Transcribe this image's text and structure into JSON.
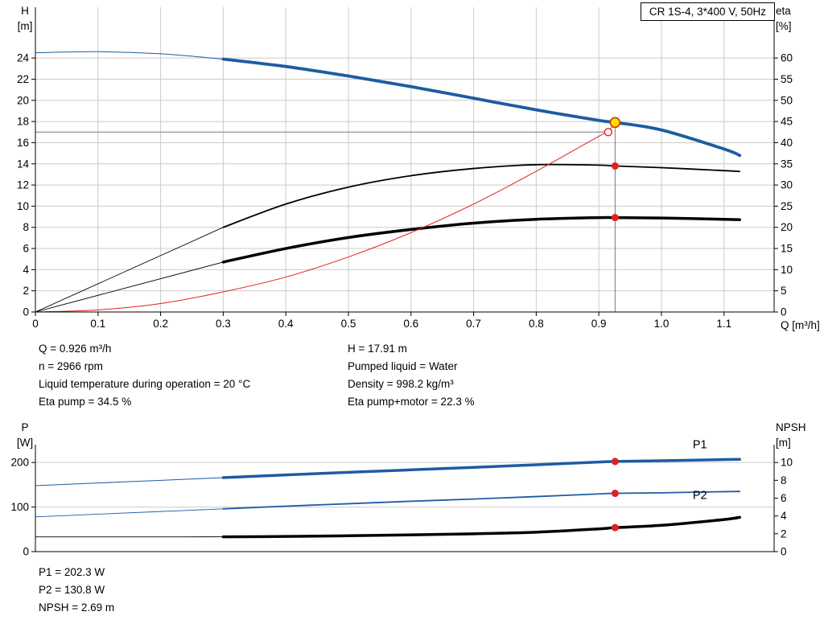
{
  "title_box": "CR 1S-4, 3*400 V, 50Hz",
  "labels": {
    "top_left_axis": "H\n[m]",
    "top_right_axis": "eta\n[%]",
    "top_x_axis": "Q [m³/h]",
    "bottom_left_axis": "P\n[W]",
    "bottom_right_axis": "NPSH\n[m]"
  },
  "info": {
    "left": [
      "Q = 0.926 m³/h",
      "n = 2966 rpm",
      "Liquid temperature during operation = 20 °C",
      "Eta pump = 34.5 %"
    ],
    "right": [
      "H = 17.91 m",
      "Pumped liquid = Water",
      "Density = 998.2 kg/m³",
      "Eta pump+motor = 22.3 %"
    ]
  },
  "footer": [
    "P1 = 202.3 W",
    "P2 = 130.8 W",
    "NPSH = 2.69 m"
  ],
  "duty_point": {
    "Q_m3h": 0.926,
    "H_m": 17.91,
    "n_rpm": 2966,
    "eta_pump_pct": 34.5,
    "eta_pump_motor_pct": 22.3,
    "P1_W": 202.3,
    "P2_W": 130.8,
    "NPSH_m": 2.69
  },
  "chart_data": [
    {
      "type": "line",
      "title": "CR 1S-4, 3*400 V, 50Hz",
      "xlabel": "Q [m³/h]",
      "ylabel": "H [m]",
      "y2label": "eta [%]",
      "xlim": [
        0,
        1.18
      ],
      "ylim": [
        0,
        28.8
      ],
      "y2lim": [
        0,
        72
      ],
      "xticks": [
        0,
        0.1,
        0.2,
        0.3,
        0.4,
        0.5,
        0.6,
        0.7,
        0.8,
        0.9,
        1.0,
        1.1
      ],
      "xtick_labels": [
        "0",
        "0.1",
        "0.2",
        "0.3",
        "0.4",
        "0.5",
        "0.6",
        "0.7",
        "0.8",
        "0.9",
        "1.0",
        "1.1"
      ],
      "yticks": [
        0,
        2,
        4,
        6,
        8,
        10,
        12,
        14,
        16,
        18,
        20,
        22,
        24
      ],
      "y2ticks": [
        0,
        5,
        10,
        15,
        20,
        25,
        30,
        35,
        40,
        45,
        50,
        55,
        60
      ],
      "grid_x": [
        0.1,
        0.2,
        0.3,
        0.4,
        0.5,
        0.6,
        0.7,
        0.8,
        0.9,
        1.0,
        1.1
      ],
      "grid_y": [
        2,
        4,
        6,
        8,
        10,
        12,
        14,
        16,
        18,
        20,
        22,
        24
      ],
      "guides": [
        {
          "name": "duty-vertical-guide",
          "v": 0.926,
          "y1": 0,
          "y2": 17.91
        },
        {
          "name": "requested-head-guide",
          "h": 17.0,
          "x1": 0,
          "x2": 0.915
        }
      ],
      "series": [
        {
          "name": "head-curve",
          "axis": "y",
          "color": "#1d5ca3",
          "width": 3.8,
          "thin_before": 0.3,
          "thin_width": 1,
          "x": [
            0,
            0.1,
            0.2,
            0.3,
            0.4,
            0.5,
            0.6,
            0.7,
            0.8,
            0.9,
            0.926,
            1.0,
            1.1,
            1.125
          ],
          "y": [
            24.5,
            24.6,
            24.4,
            23.9,
            23.2,
            22.3,
            21.3,
            20.2,
            19.1,
            18.1,
            17.91,
            17.2,
            15.4,
            14.8
          ]
        },
        {
          "name": "eta-pump-curve",
          "axis": "y2",
          "color": "#000000",
          "width": 1.8,
          "thin_before": 0.3,
          "thin_width": 0.9,
          "x": [
            0,
            0.3,
            0.4,
            0.5,
            0.6,
            0.7,
            0.8,
            0.9,
            0.926,
            1.0,
            1.1,
            1.125
          ],
          "y": [
            0,
            20,
            25.5,
            29.5,
            32.2,
            33.9,
            34.8,
            34.7,
            34.5,
            34.1,
            33.4,
            33.2
          ]
        },
        {
          "name": "eta-pump-motor-curve",
          "axis": "y2",
          "color": "#000000",
          "width": 3.5,
          "thin_before": 0.3,
          "thin_width": 0.9,
          "x": [
            0,
            0.3,
            0.4,
            0.5,
            0.6,
            0.7,
            0.8,
            0.9,
            0.926,
            1.0,
            1.1,
            1.125
          ],
          "y": [
            0,
            11.8,
            15.0,
            17.6,
            19.5,
            21.0,
            21.9,
            22.3,
            22.3,
            22.2,
            21.9,
            21.8
          ]
        },
        {
          "name": "system-curve",
          "axis": "y",
          "color": "#e02020",
          "width": 1,
          "x": [
            0,
            0.1,
            0.2,
            0.3,
            0.4,
            0.5,
            0.6,
            0.7,
            0.8,
            0.9,
            0.915
          ],
          "y": [
            0,
            0.2,
            0.8,
            1.9,
            3.3,
            5.2,
            7.5,
            10.2,
            13.3,
            16.6,
            17.0
          ]
        },
        {
          "name": "requested-to-actual-connector",
          "axis": "y",
          "color": "#e02020",
          "width": 1,
          "x": [
            0.915,
            0.926
          ],
          "y": [
            17.0,
            17.91
          ]
        }
      ],
      "markers": [
        {
          "name": "eta-pump-point",
          "x": 0.926,
          "y": 34.5,
          "axis": "y2",
          "style": "dot"
        },
        {
          "name": "eta-pump-motor-point",
          "x": 0.926,
          "y": 22.3,
          "axis": "y2",
          "style": "dot"
        },
        {
          "name": "requested-duty-point",
          "x": 0.915,
          "y": 17.0,
          "axis": "y",
          "style": "open"
        },
        {
          "name": "duty-point",
          "x": 0.926,
          "y": 17.91,
          "axis": "y",
          "style": "duty"
        }
      ],
      "annotations": []
    },
    {
      "type": "line",
      "title": "",
      "xlabel": "Q [m³/h]",
      "ylabel": "P [W]",
      "y2label": "NPSH [m]",
      "xlim": [
        0,
        1.18
      ],
      "ylim": [
        0,
        240
      ],
      "y2lim": [
        0,
        12
      ],
      "xticks": [],
      "xtick_labels": [],
      "yticks": [
        0,
        100,
        200
      ],
      "y2ticks": [
        0,
        2,
        4,
        6,
        8,
        10
      ],
      "grid_x": [],
      "grid_y": [
        100,
        200
      ],
      "guides": [],
      "series": [
        {
          "name": "p1-curve",
          "axis": "y",
          "color": "#1d5ca3",
          "width": 3.5,
          "thin_before": 0.3,
          "thin_width": 1,
          "x": [
            0,
            0.1,
            0.2,
            0.3,
            0.4,
            0.5,
            0.6,
            0.7,
            0.8,
            0.9,
            0.926,
            1.0,
            1.1,
            1.125
          ],
          "y": [
            148,
            154,
            160,
            166,
            172,
            178,
            183.5,
            189,
            195,
            201,
            202.3,
            204,
            206.5,
            207
          ]
        },
        {
          "name": "p2-curve",
          "axis": "y",
          "color": "#1d5ca3",
          "width": 1.8,
          "thin_before": 0.3,
          "thin_width": 0.9,
          "x": [
            0,
            0.1,
            0.2,
            0.3,
            0.4,
            0.5,
            0.6,
            0.7,
            0.8,
            0.9,
            0.926,
            1.0,
            1.1,
            1.125
          ],
          "y": [
            78,
            84,
            90,
            96,
            102,
            107.5,
            113,
            118,
            123.5,
            129.5,
            130.8,
            132,
            134.5,
            135
          ]
        },
        {
          "name": "npsh-curve",
          "axis": "y2",
          "color": "#000000",
          "width": 3.5,
          "thin_before": 0.3,
          "thin_width": 0.9,
          "x": [
            0,
            0.1,
            0.2,
            0.3,
            0.4,
            0.5,
            0.6,
            0.7,
            0.8,
            0.9,
            0.926,
            1.0,
            1.1,
            1.125
          ],
          "y": [
            1.65,
            1.65,
            1.65,
            1.66,
            1.7,
            1.78,
            1.88,
            2.0,
            2.18,
            2.55,
            2.69,
            2.95,
            3.6,
            3.85
          ]
        }
      ],
      "markers": [
        {
          "name": "p1-point",
          "x": 0.926,
          "y": 202.3,
          "axis": "y",
          "style": "dot"
        },
        {
          "name": "p2-point",
          "x": 0.926,
          "y": 130.8,
          "axis": "y",
          "style": "dot"
        },
        {
          "name": "npsh-point",
          "x": 0.926,
          "y": 2.69,
          "axis": "y2",
          "style": "dot"
        }
      ],
      "annotations": [
        {
          "name": "p1-label",
          "x": 1.05,
          "y": 232,
          "axis": "y",
          "text": "P1",
          "color": "#1d5ca3"
        },
        {
          "name": "p2-label",
          "x": 1.05,
          "y": 118,
          "axis": "y",
          "text": "P2",
          "color": "#1d5ca3"
        }
      ]
    }
  ]
}
